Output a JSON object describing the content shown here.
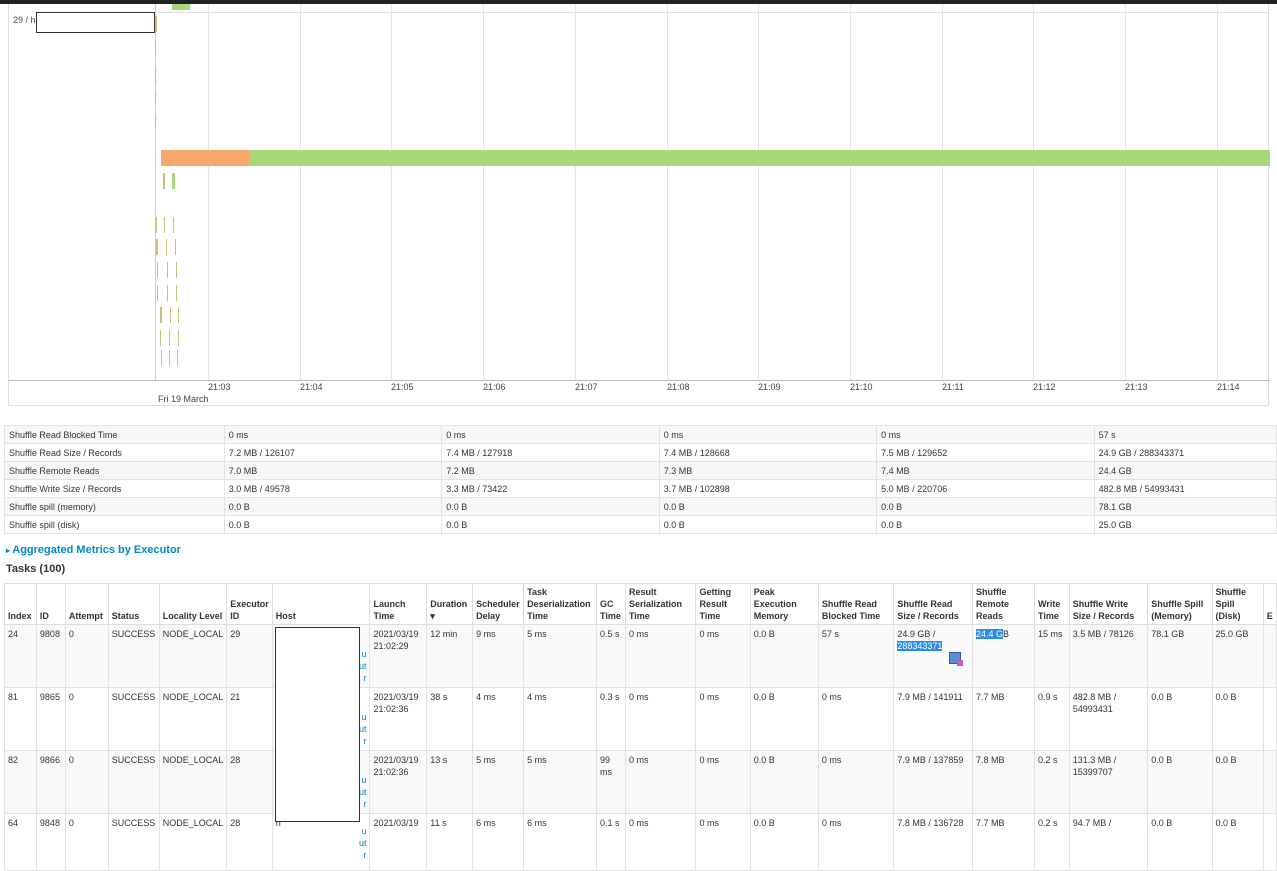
{
  "timeline": {
    "lane_label": "29 / h",
    "date_label": "Fri 19 March",
    "ticks": [
      "21:03",
      "21:04",
      "21:05",
      "21:06",
      "21:07",
      "21:08",
      "21:09",
      "21:10",
      "21:11",
      "21:12",
      "21:13",
      "21:14"
    ],
    "colors": {
      "scheduler_delay": "#f8a86c",
      "compute": "#a8d67a",
      "task_tick": "#c8c07a"
    }
  },
  "summary_rows": [
    {
      "metric": "Shuffle Read Blocked Time",
      "min": "0 ms",
      "p25": "0 ms",
      "median": "0 ms",
      "p75": "0 ms",
      "max": "57 s"
    },
    {
      "metric": "Shuffle Read Size / Records",
      "min": "7.2 MB / 126107",
      "p25": "7.4 MB / 127918",
      "median": "7.4 MB / 128668",
      "p75": "7.5 MB / 129652",
      "max": "24.9 GB / 288343371"
    },
    {
      "metric": "Shuffle Remote Reads",
      "min": "7.0 MB",
      "p25": "7.2 MB",
      "median": "7.3 MB",
      "p75": "7.4 MB",
      "max": "24.4 GB"
    },
    {
      "metric": "Shuffle Write Size / Records",
      "min": "3.0 MB / 49578",
      "p25": "3.3 MB / 73422",
      "median": "3.7 MB / 102898",
      "p75": "5.0 MB / 220706",
      "max": "482.8 MB / 54993431"
    },
    {
      "metric": "Shuffle spill (memory)",
      "min": "0.0 B",
      "p25": "0.0 B",
      "median": "0.0 B",
      "p75": "0.0 B",
      "max": "78.1 GB"
    },
    {
      "metric": "Shuffle spill (disk)",
      "min": "0.0 B",
      "p25": "0.0 B",
      "median": "0.0 B",
      "p75": "0.0 B",
      "max": "25.0 GB"
    }
  ],
  "aggregated_link": "Aggregated Metrics by Executor",
  "tasks_title": "Tasks (100)",
  "task_headers": {
    "index": "Index",
    "id": "ID",
    "attempt": "Attempt",
    "status": "Status",
    "locality": "Locality Level",
    "executor": "Executor ID",
    "host": "Host",
    "launch": "Launch Time",
    "duration": "Duration ▾",
    "sched": "Scheduler Delay",
    "deser": "Task Deserialization Time",
    "gc": "GC Time",
    "resser": "Result Serialization Time",
    "getres": "Getting Result Time",
    "peak": "Peak Execution Memory",
    "blocked": "Shuffle Read Blocked Time",
    "readsize": "Shuffle Read Size / Records",
    "remote": "Shuffle Remote Reads",
    "writetime": "Write Time",
    "writesize": "Shuffle Write Size / Records",
    "spillmem": "Shuffle Spill (Memory)",
    "spilldisk": "Shuffle Spill (Disk)",
    "err": "E"
  },
  "tasks": [
    {
      "index": "24",
      "id": "9808",
      "attempt": "0",
      "status": "SUCCESS",
      "locality": "NODE_LOCAL",
      "executor": "29",
      "host_a": "h",
      "host_b": "1",
      "launch": "2021/03/19 21:02:29",
      "duration": "12 min",
      "sched": "9 ms",
      "deser": "5 ms",
      "gc": "0.5 s",
      "resser": "0 ms",
      "getres": "0 ms",
      "peak": "0.0 B",
      "blocked": "57 s",
      "readsize_a": "24.9 GB /",
      "readsize_b": "288343371",
      "remote_a": "24.4 G",
      "remote_b": "B",
      "writetime": "15 ms",
      "writesize": "3.5 MB / 78126",
      "spillmem": "78.1 GB",
      "spilldisk": "25.0 GB"
    },
    {
      "index": "81",
      "id": "9865",
      "attempt": "0",
      "status": "SUCCESS",
      "locality": "NODE_LOCAL",
      "executor": "21",
      "host_a": "h",
      "host_b": "1",
      "launch": "2021/03/19 21:02:36",
      "duration": "38 s",
      "sched": "4 ms",
      "deser": "4 ms",
      "gc": "0.3 s",
      "resser": "0 ms",
      "getres": "0 ms",
      "peak": "0.0 B",
      "blocked": "0 ms",
      "readsize_a": "7.9 MB / 141911",
      "readsize_b": "",
      "remote_a": "7.7 MB",
      "remote_b": "",
      "writetime": "0.9 s",
      "writesize": "482.8 MB / 54993431",
      "spillmem": "0.0 B",
      "spilldisk": "0.0 B"
    },
    {
      "index": "82",
      "id": "9866",
      "attempt": "0",
      "status": "SUCCESS",
      "locality": "NODE_LOCAL",
      "executor": "28",
      "host_a": "h",
      "host_b": "1",
      "launch": "2021/03/19 21:02:36",
      "duration": "13 s",
      "sched": "5 ms",
      "deser": "5 ms",
      "gc": "99 ms",
      "resser": "0 ms",
      "getres": "0 ms",
      "peak": "0.0 B",
      "blocked": "0 ms",
      "readsize_a": "7.9 MB / 137859",
      "readsize_b": "",
      "remote_a": "7.8 MB",
      "remote_b": "",
      "writetime": "0.2 s",
      "writesize": "131.3 MB / 15399707",
      "spillmem": "0.0 B",
      "spilldisk": "0.0 B"
    },
    {
      "index": "64",
      "id": "9848",
      "attempt": "0",
      "status": "SUCCESS",
      "locality": "NODE_LOCAL",
      "executor": "28",
      "host_a": "h",
      "host_b": "",
      "launch": "2021/03/19",
      "duration": "11 s",
      "sched": "6 ms",
      "deser": "6 ms",
      "gc": "0.1 s",
      "resser": "0 ms",
      "getres": "0 ms",
      "peak": "0.0 B",
      "blocked": "0 ms",
      "readsize_a": "7.8 MB / 136728",
      "readsize_b": "",
      "remote_a": "7.7 MB",
      "remote_b": "",
      "writetime": "0.2 s",
      "writesize": "94.7 MB /",
      "spillmem": "0.0 B",
      "spilldisk": "0.0 B"
    }
  ],
  "host_frags": [
    "u",
    "ut",
    "r"
  ]
}
